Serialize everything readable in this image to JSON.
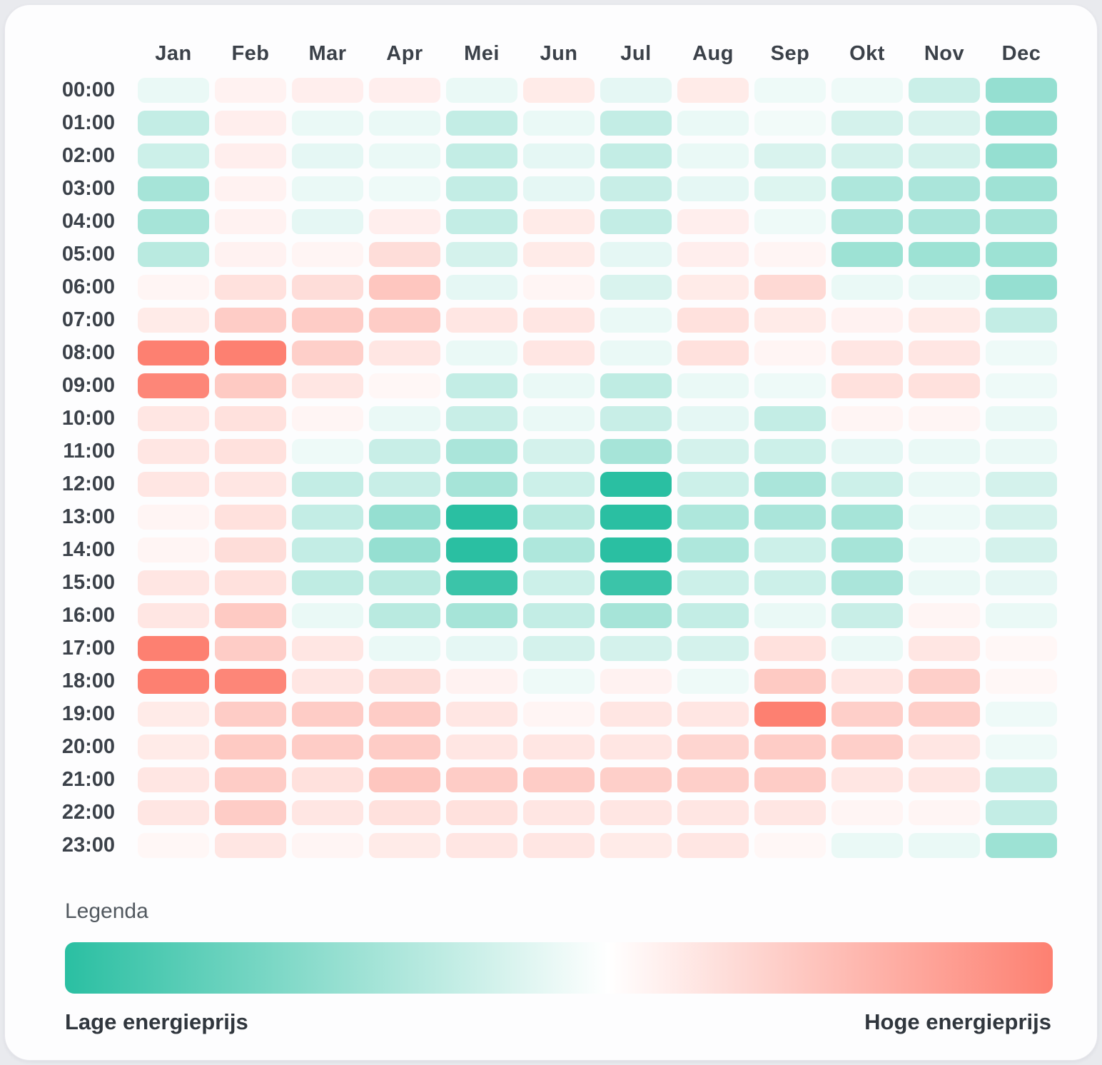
{
  "legend": {
    "title": "Legenda",
    "low_label": "Lage energieprijs",
    "high_label": "Hoge energieprijs"
  },
  "colors": {
    "low": "#2abfa2",
    "neutral": "#ffffff",
    "high": "#fd8071",
    "label_dark": "#3b4149",
    "card_bg": "#fdfdfe"
  },
  "chart_data": {
    "type": "heatmap",
    "title": "",
    "xlabel": "",
    "ylabel": "",
    "columns": [
      "Jan",
      "Feb",
      "Mar",
      "Apr",
      "Mei",
      "Jun",
      "Jul",
      "Aug",
      "Sep",
      "Okt",
      "Nov",
      "Dec"
    ],
    "rows": [
      "00:00",
      "01:00",
      "02:00",
      "03:00",
      "04:00",
      "05:00",
      "06:00",
      "07:00",
      "08:00",
      "09:00",
      "10:00",
      "11:00",
      "12:00",
      "13:00",
      "14:00",
      "15:00",
      "16:00",
      "17:00",
      "18:00",
      "19:00",
      "20:00",
      "21:00",
      "22:00",
      "23:00"
    ],
    "value_scale": "relative energy price, -1 = lowest (teal), 0 = neutral (white), +1 = highest (red)",
    "values": [
      [
        -0.1,
        0.1,
        0.13,
        0.13,
        -0.1,
        0.16,
        -0.12,
        0.16,
        -0.08,
        -0.08,
        -0.25,
        -0.5
      ],
      [
        -0.28,
        0.13,
        -0.1,
        -0.1,
        -0.28,
        -0.1,
        -0.28,
        -0.1,
        -0.06,
        -0.2,
        -0.18,
        -0.5
      ],
      [
        -0.24,
        0.13,
        -0.12,
        -0.1,
        -0.28,
        -0.12,
        -0.28,
        -0.1,
        -0.18,
        -0.2,
        -0.2,
        -0.5
      ],
      [
        -0.42,
        0.1,
        -0.1,
        -0.08,
        -0.28,
        -0.12,
        -0.26,
        -0.12,
        -0.16,
        -0.38,
        -0.4,
        -0.45
      ],
      [
        -0.42,
        0.1,
        -0.12,
        0.13,
        -0.28,
        0.16,
        -0.28,
        0.13,
        -0.08,
        -0.4,
        -0.4,
        -0.42
      ],
      [
        -0.33,
        0.1,
        0.08,
        0.27,
        -0.2,
        0.16,
        -0.12,
        0.13,
        0.08,
        -0.46,
        -0.46,
        -0.46
      ],
      [
        0.08,
        0.24,
        0.27,
        0.45,
        -0.12,
        0.08,
        -0.18,
        0.16,
        0.3,
        -0.1,
        -0.1,
        -0.5
      ],
      [
        0.16,
        0.4,
        0.4,
        0.4,
        0.2,
        0.2,
        -0.1,
        0.24,
        0.16,
        0.1,
        0.16,
        -0.28
      ],
      [
        1.0,
        1.0,
        0.38,
        0.2,
        -0.1,
        0.2,
        -0.1,
        0.24,
        0.08,
        0.2,
        0.2,
        -0.08
      ],
      [
        0.95,
        0.42,
        0.2,
        0.06,
        -0.28,
        -0.1,
        -0.3,
        -0.1,
        -0.08,
        0.24,
        0.24,
        -0.08
      ],
      [
        0.2,
        0.24,
        0.08,
        -0.1,
        -0.26,
        -0.1,
        -0.26,
        -0.12,
        -0.28,
        0.08,
        0.08,
        -0.1
      ],
      [
        0.2,
        0.24,
        -0.08,
        -0.26,
        -0.4,
        -0.2,
        -0.42,
        -0.2,
        -0.24,
        -0.12,
        -0.1,
        -0.1
      ],
      [
        0.2,
        0.2,
        -0.28,
        -0.26,
        -0.42,
        -0.24,
        -1.0,
        -0.24,
        -0.4,
        -0.24,
        -0.1,
        -0.2
      ],
      [
        0.08,
        0.24,
        -0.28,
        -0.5,
        -1.0,
        -0.33,
        -1.0,
        -0.38,
        -0.4,
        -0.42,
        -0.08,
        -0.2
      ],
      [
        0.08,
        0.27,
        -0.28,
        -0.5,
        -1.0,
        -0.38,
        -1.0,
        -0.38,
        -0.24,
        -0.42,
        -0.08,
        -0.2
      ],
      [
        0.2,
        0.24,
        -0.3,
        -0.33,
        -0.92,
        -0.24,
        -0.92,
        -0.24,
        -0.24,
        -0.4,
        -0.1,
        -0.12
      ],
      [
        0.2,
        0.42,
        -0.1,
        -0.33,
        -0.42,
        -0.28,
        -0.42,
        -0.28,
        -0.1,
        -0.26,
        0.08,
        -0.1
      ],
      [
        1.0,
        0.4,
        0.2,
        -0.1,
        -0.12,
        -0.2,
        -0.2,
        -0.2,
        0.24,
        -0.1,
        0.2,
        0.06
      ],
      [
        1.0,
        0.95,
        0.2,
        0.27,
        0.1,
        -0.08,
        0.1,
        -0.08,
        0.42,
        0.2,
        0.38,
        0.06
      ],
      [
        0.16,
        0.4,
        0.4,
        0.4,
        0.2,
        0.08,
        0.2,
        0.2,
        1.0,
        0.38,
        0.38,
        -0.08
      ],
      [
        0.16,
        0.42,
        0.4,
        0.4,
        0.2,
        0.2,
        0.2,
        0.33,
        0.4,
        0.38,
        0.2,
        -0.08
      ],
      [
        0.2,
        0.4,
        0.24,
        0.45,
        0.4,
        0.4,
        0.38,
        0.38,
        0.4,
        0.2,
        0.2,
        -0.28
      ],
      [
        0.2,
        0.4,
        0.2,
        0.24,
        0.24,
        0.2,
        0.2,
        0.2,
        0.2,
        0.08,
        0.08,
        -0.28
      ],
      [
        0.06,
        0.2,
        0.08,
        0.16,
        0.2,
        0.2,
        0.16,
        0.2,
        0.06,
        -0.1,
        -0.1,
        -0.46
      ]
    ],
    "legend_position": "bottom",
    "grid": false
  }
}
